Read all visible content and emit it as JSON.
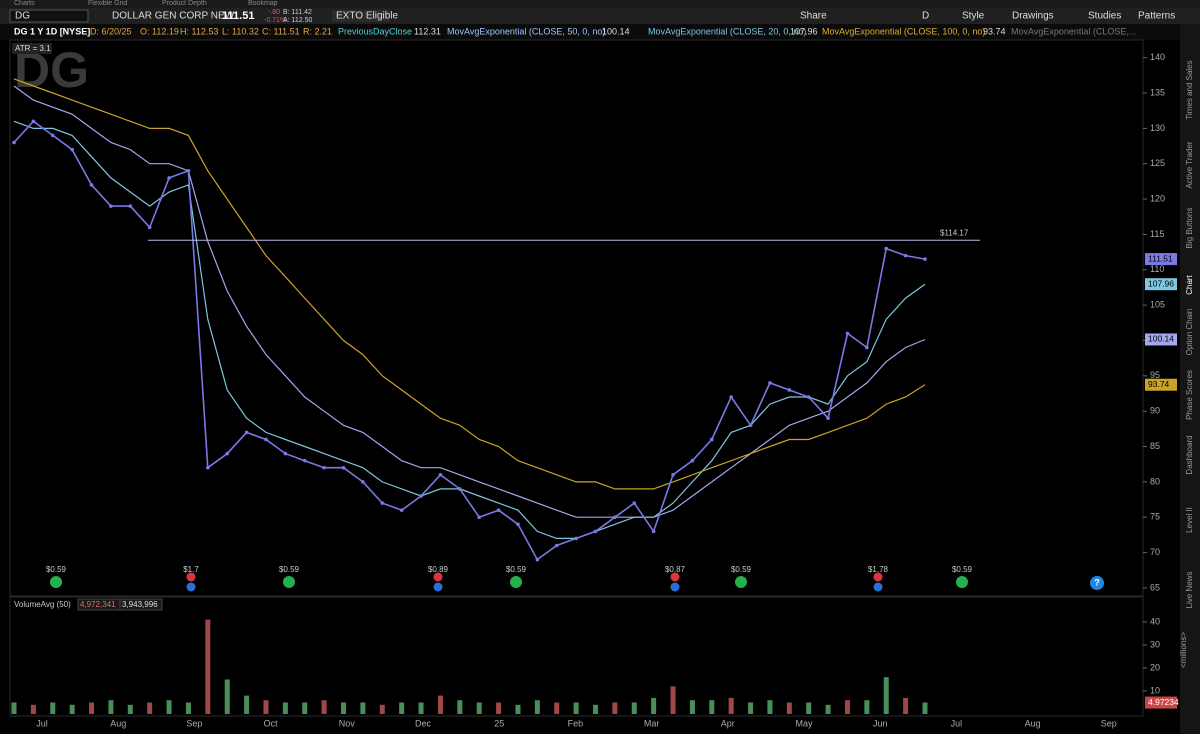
{
  "tabs": [
    "Charts",
    "Flexible Grid",
    "Product Depth",
    "Bookmap"
  ],
  "toolbar": {
    "symbol": "DG",
    "company": "DOLLAR GEN CORP NEW",
    "last": "111.51",
    "change": "-.80",
    "change_pct": "-0.71%",
    "bid": "B: 111.42",
    "ask": "A: 112.50",
    "badge": "EXTO Eligible",
    "buttons": [
      "Share",
      "D",
      "Style",
      "Drawings",
      "Studies",
      "Patterns"
    ]
  },
  "info_bar": {
    "title": "DG 1 Y 1D [NYSE]",
    "date": "D: 6/20/25",
    "open": "O: 112.19",
    "high": "H: 112.53",
    "low": "L: 110.32",
    "close": "C: 111.51",
    "range": "R: 2.21",
    "prev_close_name": "PreviousDayClose",
    "prev_close": "112.31",
    "truncated": "MovAvgExponential (CLOSE,..."
  },
  "atr": "ATR = 3.1",
  "side_tabs": [
    "Times and Sales",
    "Active Trader",
    "Big Buttons",
    "Chart",
    "Option Chain",
    "Phase Scores",
    "Dashboard",
    "Level II",
    "Live News"
  ],
  "chart_data": [
    {
      "type": "line",
      "color": "#7b79e6",
      "values": [
        128,
        131,
        129,
        127,
        122,
        119,
        119,
        116,
        123,
        124,
        82,
        84,
        87,
        86,
        84,
        83,
        82,
        82,
        80,
        77,
        76,
        78,
        81,
        79,
        75,
        76,
        74,
        69,
        71,
        72,
        73,
        75,
        77,
        73,
        81,
        83,
        86,
        92,
        88,
        94,
        93,
        92,
        89,
        101,
        99,
        113,
        112,
        111.51
      ],
      "series": [
        {
          "name": "MovAvgExponential (CLOSE, 50, 0, no)",
          "color": "#a3a6ee",
          "values": [
            136,
            134,
            133,
            132,
            130,
            128,
            127,
            125,
            125,
            124,
            114,
            107,
            102,
            98,
            95,
            92,
            90,
            88,
            87,
            85,
            83,
            82,
            82,
            81,
            80,
            79,
            78,
            77,
            76,
            75,
            75,
            75,
            75,
            75,
            76,
            78,
            80,
            82,
            84,
            86,
            88,
            89,
            90,
            92,
            94,
            97,
            99,
            100.14
          ]
        },
        {
          "name": "MovAvgExponential (CLOSE, 20, 0, no)",
          "color": "#7fc6df",
          "values": [
            131,
            130,
            130,
            129,
            126,
            123,
            121,
            119,
            121,
            122,
            103,
            93,
            89,
            87,
            86,
            85,
            84,
            83,
            82,
            80,
            79,
            78,
            79,
            79,
            78,
            77,
            76,
            73,
            72,
            72,
            73,
            74,
            75,
            75,
            77,
            80,
            83,
            87,
            88,
            91,
            92,
            92,
            91,
            95,
            97,
            103,
            106,
            107.96
          ]
        },
        {
          "name": "MovAvgExponential (CLOSE, 100, 0, no)",
          "color": "#c9a227",
          "values": [
            137,
            136,
            135,
            134,
            133,
            132,
            131,
            130,
            130,
            129,
            124,
            120,
            116,
            112,
            109,
            106,
            103,
            100,
            98,
            95,
            93,
            91,
            89,
            88,
            86,
            85,
            83,
            82,
            81,
            80,
            80,
            79,
            79,
            79,
            80,
            81,
            82,
            83,
            84,
            85,
            86,
            86,
            87,
            88,
            89,
            91,
            92,
            93.74
          ]
        }
      ],
      "ylim": [
        64,
        142.5
      ],
      "yticks": [
        65,
        70,
        75,
        80,
        85,
        90,
        95,
        100,
        105,
        110,
        115,
        120,
        125,
        130,
        135,
        140
      ],
      "levels": [
        {
          "value": 114.17,
          "label": "$114.17"
        }
      ],
      "events": [
        {
          "label": "$0.59",
          "color": "#22b14c"
        },
        {
          "label": "$1.7",
          "color": "#d9363e"
        },
        {
          "label": "$0.59",
          "color": "#22b14c"
        },
        {
          "label": "$0.89",
          "color": "#d9363e"
        },
        {
          "label": "$0.59",
          "color": "#22b14c"
        },
        {
          "label": "$0.87",
          "color": "#d9363e"
        },
        {
          "label": "$0.59",
          "color": "#22b14c"
        },
        {
          "label": "$1.78",
          "color": "#d9363e"
        },
        {
          "label": "$0.59",
          "color": "#22b14c"
        }
      ],
      "help": "?"
    },
    {
      "type": "bar",
      "title": "VolumeAvg (50)",
      "color": "#4a8f5a",
      "stats": [
        {
          "value": 4972341,
          "label": "4,972,341"
        },
        {
          "value": 3943996,
          "label": "3,943,996"
        }
      ],
      "values": [
        5,
        4,
        5,
        4,
        5,
        6,
        4,
        5,
        6,
        5,
        41,
        15,
        8,
        6,
        5,
        5,
        6,
        5,
        5,
        4,
        5,
        5,
        8,
        6,
        5,
        5,
        4,
        6,
        5,
        5,
        4,
        5,
        5,
        7,
        12,
        6,
        6,
        7,
        5,
        6,
        5,
        5,
        4,
        6,
        6,
        16,
        7,
        5
      ],
      "ylim": [
        0,
        47.8
      ],
      "yticks": [
        10,
        20,
        30,
        40
      ],
      "ylabel": "<millions>",
      "avg_badge": 4.97234,
      "xticks": [
        "Jul",
        "Aug",
        "Sep",
        "Oct",
        "Nov",
        "Dec",
        "25",
        "Feb",
        "Mar",
        "Apr",
        "May",
        "Jun",
        "Jul",
        "Aug",
        "Sep"
      ]
    }
  ]
}
